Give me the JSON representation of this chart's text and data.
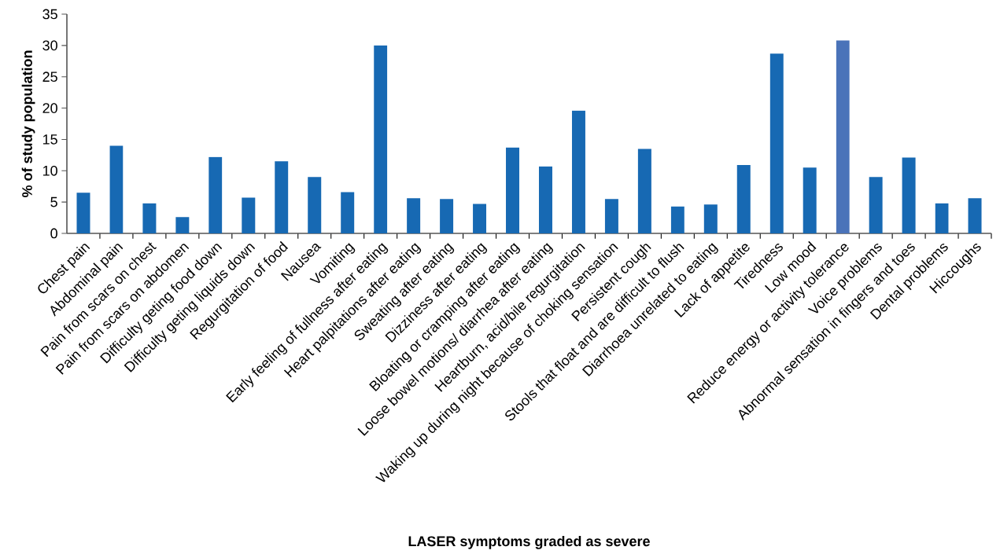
{
  "chart_data": {
    "type": "bar",
    "xlabel": "LASER symptoms graded as severe",
    "ylabel": "% of study population",
    "categories": [
      "Chest pain",
      "Abdominal pain",
      "Pain from scars on chest",
      "Pain from scars on abdomen",
      "Difficulty geting food down",
      "Difficulty geting liquids down",
      "Regurgitation of food",
      "Nausea",
      "Vomiting",
      "Early feeling of fullness after eating",
      "Heart palpitations after eating",
      "Sweating after eating",
      "Dizziness after eating",
      "Bloating or cramping after eating",
      "Loose bowel motions/ diarrhea after eating",
      "Heartburn, acid/bile regurgitation",
      "Waking up during night because of choking sensation",
      "Persistent cough",
      "Stools that float and are difficult to flush",
      "Diarrhoea unrelated to eating",
      "Lack of appetite",
      "Tiredness",
      "Low mood",
      "Reduce energy or activity tolerance",
      "Voice problems",
      "Abnormal sensation in fingers and toes",
      "Dental problems",
      "Hiccoughs"
    ],
    "values": [
      6.5,
      14.0,
      4.8,
      2.6,
      12.2,
      5.7,
      11.5,
      9.0,
      6.6,
      30.0,
      5.6,
      5.5,
      4.7,
      13.7,
      10.7,
      19.6,
      5.5,
      13.5,
      4.3,
      4.6,
      10.9,
      28.7,
      10.5,
      30.8,
      9.0,
      12.1,
      4.8,
      5.6
    ],
    "colors": [
      "#1769b3",
      "#1769b3",
      "#1769b3",
      "#1769b3",
      "#1769b3",
      "#1769b3",
      "#1769b3",
      "#1769b3",
      "#1769b3",
      "#1769b3",
      "#1769b3",
      "#1769b3",
      "#1769b3",
      "#1769b3",
      "#1769b3",
      "#1769b3",
      "#1769b3",
      "#1769b3",
      "#1769b3",
      "#1769b3",
      "#1769b3",
      "#1769b3",
      "#1769b3",
      "#4a73b9",
      "#1769b3",
      "#1769b3",
      "#1769b3",
      "#1769b3"
    ],
    "ylim": [
      0,
      35
    ],
    "yticks": [
      0,
      5,
      10,
      15,
      20,
      25,
      30,
      35
    ]
  }
}
